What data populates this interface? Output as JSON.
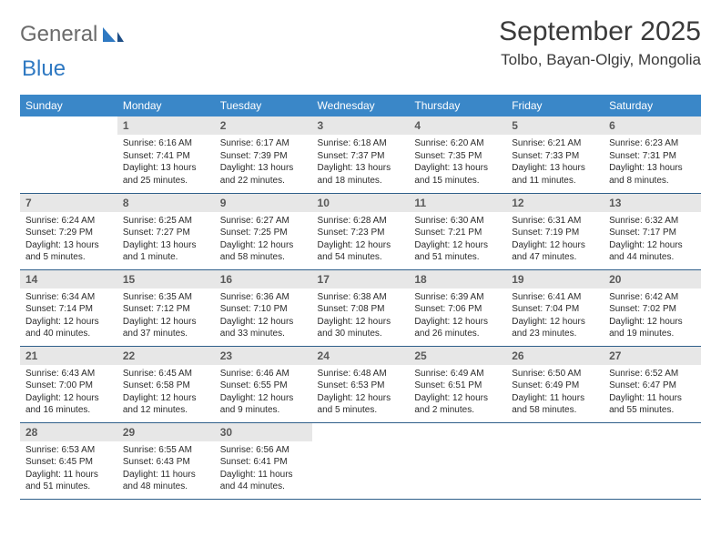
{
  "brand": {
    "word1": "General",
    "word2": "Blue"
  },
  "title": "September 2025",
  "location": "Tolbo, Bayan-Olgiy, Mongolia",
  "colors": {
    "header_bg": "#3a87c8",
    "header_text": "#ffffff",
    "daynum_bg": "#e7e7e7",
    "daynum_text": "#5a5a5a",
    "rule": "#2f5f8a",
    "brand_gray": "#6b6b6b",
    "brand_blue": "#2f79c2"
  },
  "dayHeaders": [
    "Sunday",
    "Monday",
    "Tuesday",
    "Wednesday",
    "Thursday",
    "Friday",
    "Saturday"
  ],
  "weeks": [
    [
      {
        "n": null
      },
      {
        "n": 1,
        "sunrise": "6:16 AM",
        "sunset": "7:41 PM",
        "daylight": "13 hours and 25 minutes."
      },
      {
        "n": 2,
        "sunrise": "6:17 AM",
        "sunset": "7:39 PM",
        "daylight": "13 hours and 22 minutes."
      },
      {
        "n": 3,
        "sunrise": "6:18 AM",
        "sunset": "7:37 PM",
        "daylight": "13 hours and 18 minutes."
      },
      {
        "n": 4,
        "sunrise": "6:20 AM",
        "sunset": "7:35 PM",
        "daylight": "13 hours and 15 minutes."
      },
      {
        "n": 5,
        "sunrise": "6:21 AM",
        "sunset": "7:33 PM",
        "daylight": "13 hours and 11 minutes."
      },
      {
        "n": 6,
        "sunrise": "6:23 AM",
        "sunset": "7:31 PM",
        "daylight": "13 hours and 8 minutes."
      }
    ],
    [
      {
        "n": 7,
        "sunrise": "6:24 AM",
        "sunset": "7:29 PM",
        "daylight": "13 hours and 5 minutes."
      },
      {
        "n": 8,
        "sunrise": "6:25 AM",
        "sunset": "7:27 PM",
        "daylight": "13 hours and 1 minute."
      },
      {
        "n": 9,
        "sunrise": "6:27 AM",
        "sunset": "7:25 PM",
        "daylight": "12 hours and 58 minutes."
      },
      {
        "n": 10,
        "sunrise": "6:28 AM",
        "sunset": "7:23 PM",
        "daylight": "12 hours and 54 minutes."
      },
      {
        "n": 11,
        "sunrise": "6:30 AM",
        "sunset": "7:21 PM",
        "daylight": "12 hours and 51 minutes."
      },
      {
        "n": 12,
        "sunrise": "6:31 AM",
        "sunset": "7:19 PM",
        "daylight": "12 hours and 47 minutes."
      },
      {
        "n": 13,
        "sunrise": "6:32 AM",
        "sunset": "7:17 PM",
        "daylight": "12 hours and 44 minutes."
      }
    ],
    [
      {
        "n": 14,
        "sunrise": "6:34 AM",
        "sunset": "7:14 PM",
        "daylight": "12 hours and 40 minutes."
      },
      {
        "n": 15,
        "sunrise": "6:35 AM",
        "sunset": "7:12 PM",
        "daylight": "12 hours and 37 minutes."
      },
      {
        "n": 16,
        "sunrise": "6:36 AM",
        "sunset": "7:10 PM",
        "daylight": "12 hours and 33 minutes."
      },
      {
        "n": 17,
        "sunrise": "6:38 AM",
        "sunset": "7:08 PM",
        "daylight": "12 hours and 30 minutes."
      },
      {
        "n": 18,
        "sunrise": "6:39 AM",
        "sunset": "7:06 PM",
        "daylight": "12 hours and 26 minutes."
      },
      {
        "n": 19,
        "sunrise": "6:41 AM",
        "sunset": "7:04 PM",
        "daylight": "12 hours and 23 minutes."
      },
      {
        "n": 20,
        "sunrise": "6:42 AM",
        "sunset": "7:02 PM",
        "daylight": "12 hours and 19 minutes."
      }
    ],
    [
      {
        "n": 21,
        "sunrise": "6:43 AM",
        "sunset": "7:00 PM",
        "daylight": "12 hours and 16 minutes."
      },
      {
        "n": 22,
        "sunrise": "6:45 AM",
        "sunset": "6:58 PM",
        "daylight": "12 hours and 12 minutes."
      },
      {
        "n": 23,
        "sunrise": "6:46 AM",
        "sunset": "6:55 PM",
        "daylight": "12 hours and 9 minutes."
      },
      {
        "n": 24,
        "sunrise": "6:48 AM",
        "sunset": "6:53 PM",
        "daylight": "12 hours and 5 minutes."
      },
      {
        "n": 25,
        "sunrise": "6:49 AM",
        "sunset": "6:51 PM",
        "daylight": "12 hours and 2 minutes."
      },
      {
        "n": 26,
        "sunrise": "6:50 AM",
        "sunset": "6:49 PM",
        "daylight": "11 hours and 58 minutes."
      },
      {
        "n": 27,
        "sunrise": "6:52 AM",
        "sunset": "6:47 PM",
        "daylight": "11 hours and 55 minutes."
      }
    ],
    [
      {
        "n": 28,
        "sunrise": "6:53 AM",
        "sunset": "6:45 PM",
        "daylight": "11 hours and 51 minutes."
      },
      {
        "n": 29,
        "sunrise": "6:55 AM",
        "sunset": "6:43 PM",
        "daylight": "11 hours and 48 minutes."
      },
      {
        "n": 30,
        "sunrise": "6:56 AM",
        "sunset": "6:41 PM",
        "daylight": "11 hours and 44 minutes."
      },
      {
        "n": null
      },
      {
        "n": null
      },
      {
        "n": null
      },
      {
        "n": null
      }
    ]
  ],
  "labels": {
    "sunrise": "Sunrise:",
    "sunset": "Sunset:",
    "daylight": "Daylight:"
  }
}
